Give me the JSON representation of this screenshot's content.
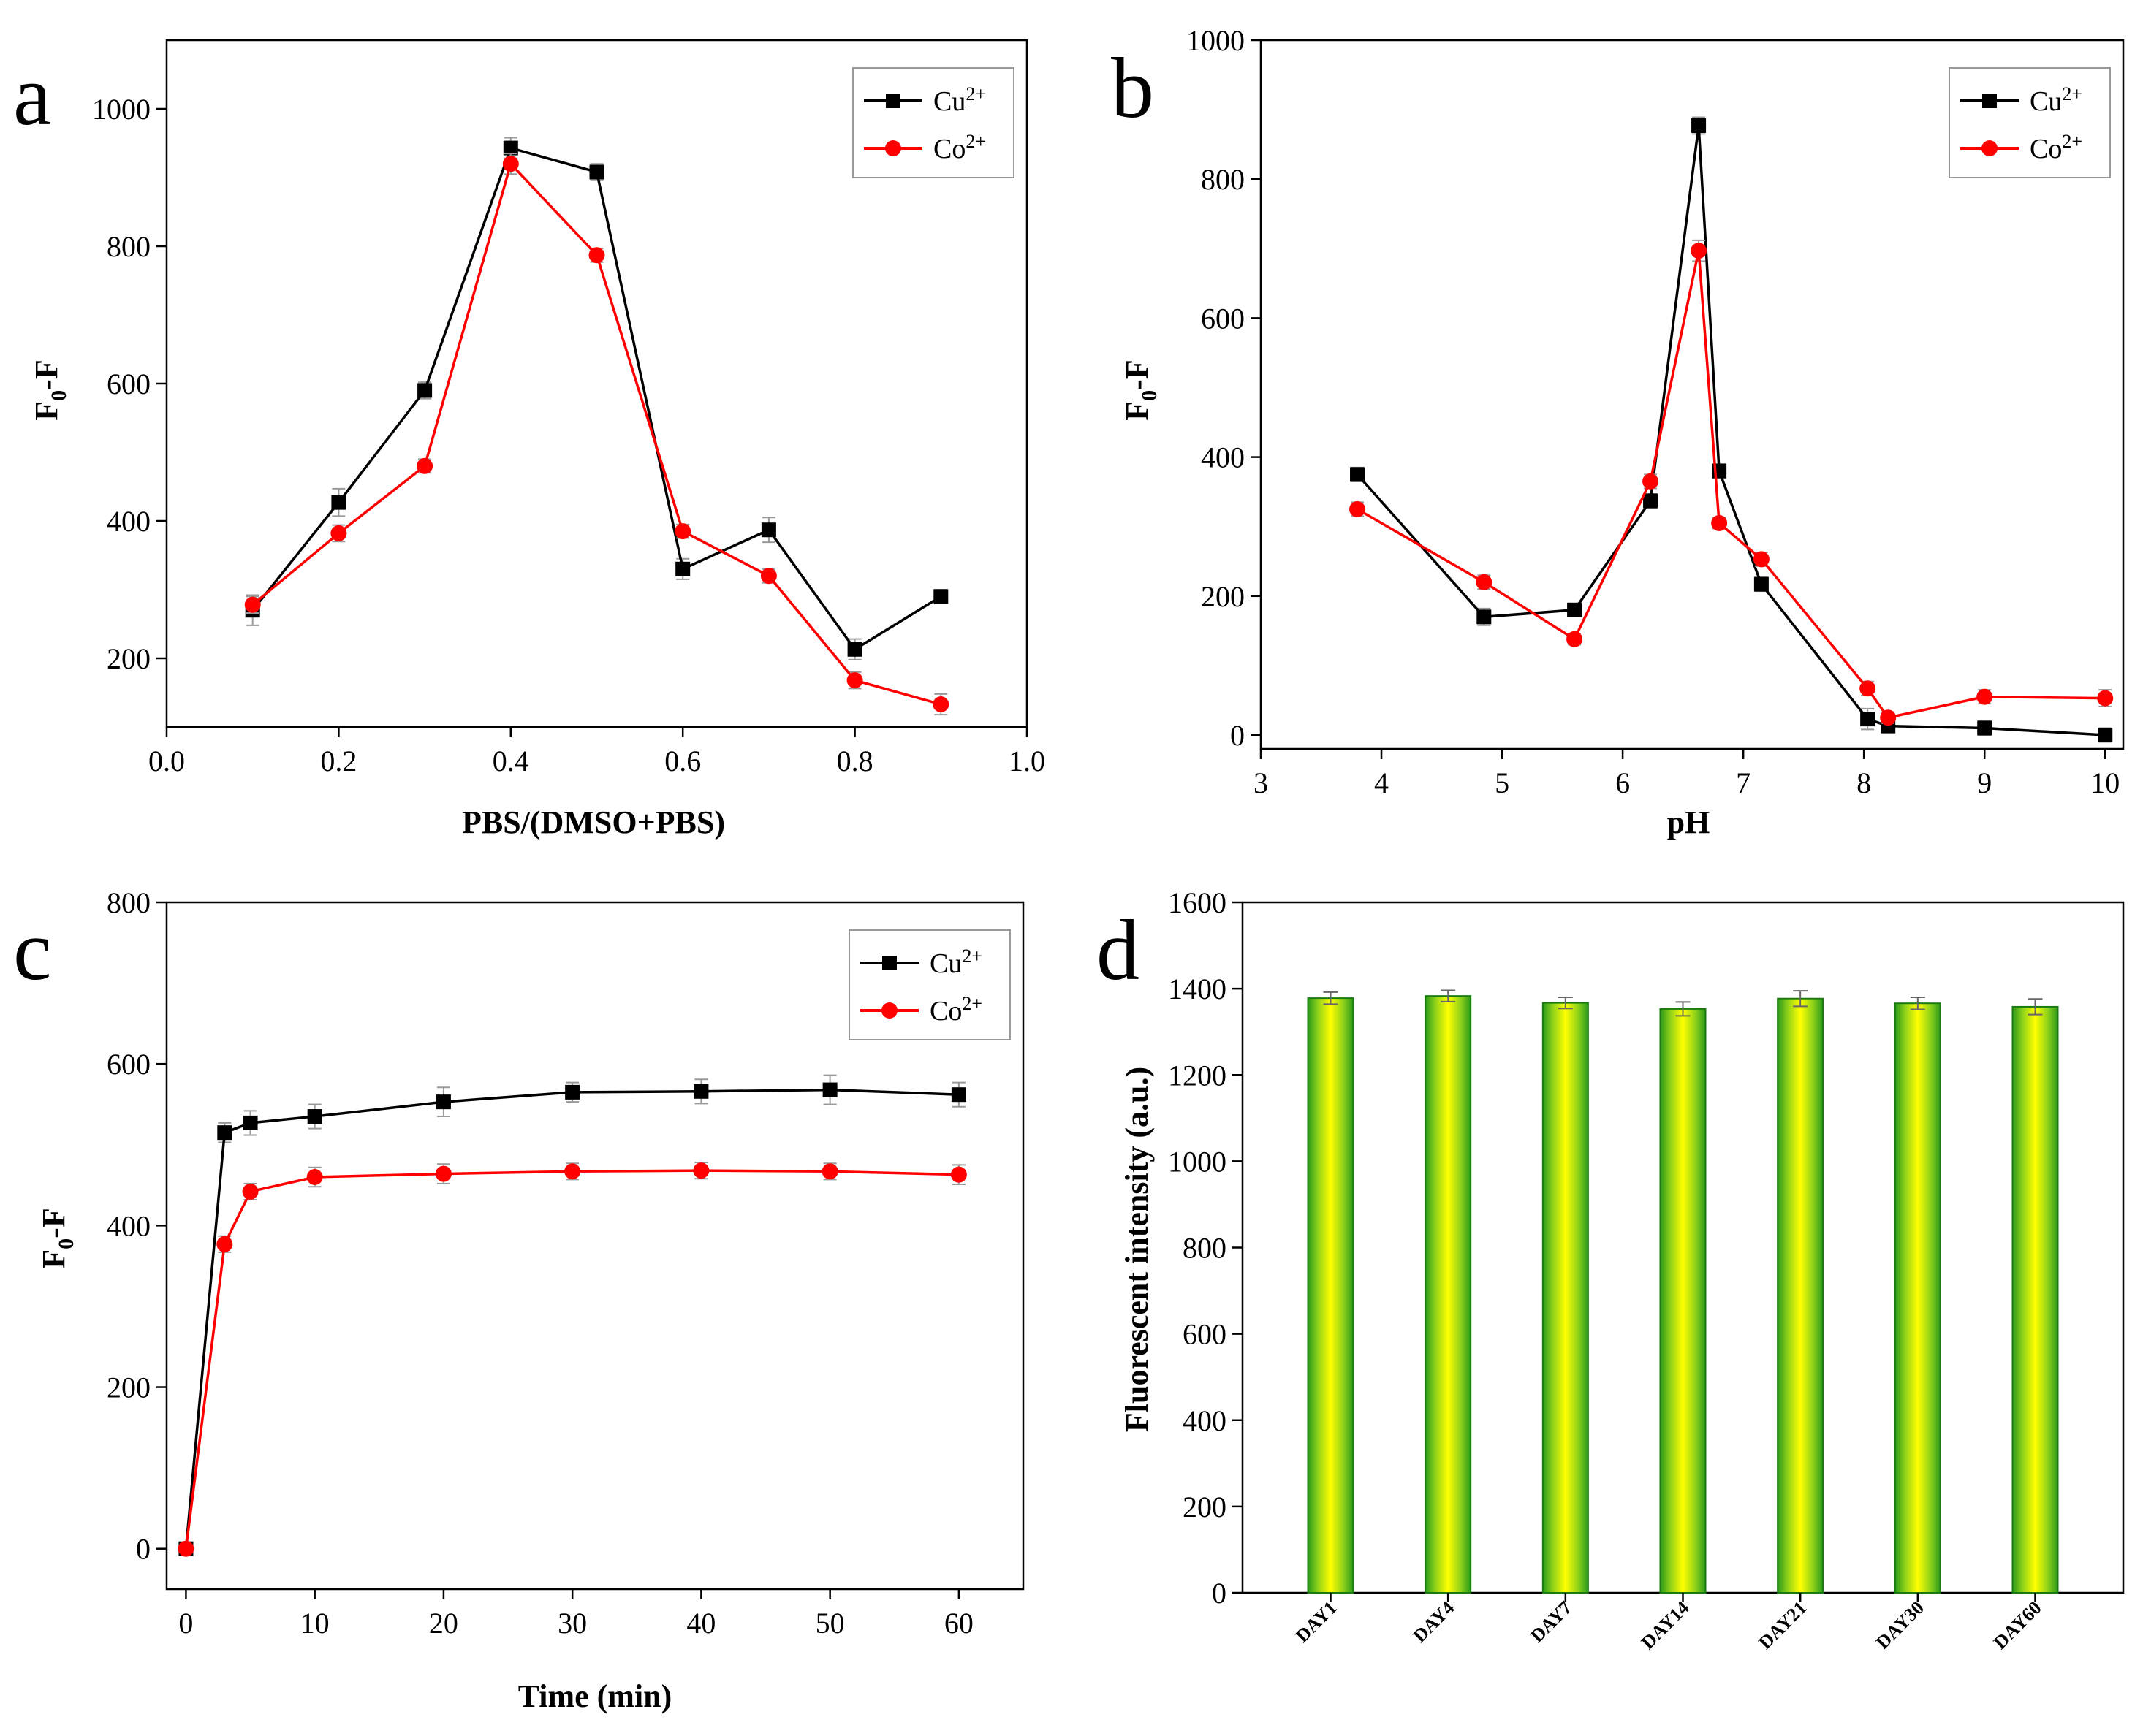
{
  "chart_data": [
    {
      "panel": "a",
      "type": "line",
      "xlabel": "PBS/(DMSO+PBS)",
      "ylabel": "F0-F",
      "ylabel_main": "F",
      "ylabel_sub": "0",
      "ylabel_tail": "-F",
      "xlim": [
        0.0,
        1.0
      ],
      "ylim": [
        100,
        1100
      ],
      "xticks": [
        0.0,
        0.2,
        0.4,
        0.6,
        0.8,
        1.0
      ],
      "xtick_labels": [
        "0.0",
        "0.2",
        "0.4",
        "0.6",
        "0.8",
        "1.0"
      ],
      "yticks": [
        200,
        400,
        600,
        800,
        1000
      ],
      "ytick_labels": [
        "200",
        "400",
        "600",
        "800",
        "1000"
      ],
      "legend": "top-right",
      "series": [
        {
          "name": "Cu2+",
          "ion": "Cu",
          "charge": "2+",
          "color": "#000000",
          "marker": "square",
          "x": [
            0.1,
            0.2,
            0.3,
            0.4,
            0.5,
            0.6,
            0.7,
            0.8,
            0.9
          ],
          "y": [
            270,
            427,
            590,
            943,
            908,
            330,
            387,
            213,
            290
          ],
          "err": [
            22,
            20,
            12,
            15,
            12,
            15,
            18,
            15,
            10
          ]
        },
        {
          "name": "Co2+",
          "ion": "Co",
          "charge": "2+",
          "color": "#ff0000",
          "marker": "circle",
          "x": [
            0.1,
            0.2,
            0.3,
            0.4,
            0.5,
            0.6,
            0.7,
            0.8,
            0.9
          ],
          "y": [
            278,
            382,
            480,
            920,
            787,
            385,
            320,
            168,
            133
          ],
          "err": [
            12,
            12,
            10,
            15,
            10,
            10,
            10,
            12,
            15
          ]
        }
      ]
    },
    {
      "panel": "b",
      "type": "line",
      "xlabel": "pH",
      "ylabel": "F0-F",
      "ylabel_main": "F",
      "ylabel_sub": "0",
      "ylabel_tail": "-F",
      "xlim": [
        3,
        10.15
      ],
      "ylim": [
        -20,
        1000
      ],
      "xticks": [
        3,
        4,
        5,
        6,
        7,
        8,
        9,
        10
      ],
      "xtick_labels": [
        "3",
        "4",
        "5",
        "6",
        "7",
        "8",
        "9",
        "10"
      ],
      "yticks": [
        0,
        200,
        400,
        600,
        800,
        1000
      ],
      "ytick_labels": [
        "0",
        "200",
        "400",
        "600",
        "800",
        "1000"
      ],
      "legend": "top-right",
      "series": [
        {
          "name": "Cu2+",
          "ion": "Cu",
          "charge": "2+",
          "color": "#000000",
          "marker": "square",
          "x": [
            3.8,
            4.85,
            5.6,
            6.23,
            6.63,
            6.8,
            7.15,
            8.03,
            8.2,
            9.0,
            10.0
          ],
          "y": [
            375,
            170,
            180,
            337,
            877,
            380,
            217,
            23,
            13,
            10,
            0
          ],
          "err": [
            10,
            12,
            8,
            10,
            12,
            10,
            10,
            15,
            8,
            10,
            10
          ]
        },
        {
          "name": "Co2+",
          "ion": "Co",
          "charge": "2+",
          "color": "#ff0000",
          "marker": "circle",
          "x": [
            3.8,
            4.85,
            5.6,
            6.23,
            6.63,
            6.8,
            7.15,
            8.03,
            8.2,
            9.0,
            10.0
          ],
          "y": [
            325,
            220,
            138,
            365,
            697,
            305,
            253,
            67,
            25,
            55,
            53
          ],
          "err": [
            10,
            10,
            8,
            10,
            15,
            8,
            10,
            10,
            8,
            10,
            12
          ]
        }
      ]
    },
    {
      "panel": "c",
      "type": "line",
      "xlabel": "Time (min)",
      "ylabel": "F0-F",
      "ylabel_main": "F",
      "ylabel_sub": "0",
      "ylabel_tail": "-F",
      "xlim": [
        -1.5,
        65
      ],
      "ylim": [
        -50,
        800
      ],
      "xticks": [
        0,
        10,
        20,
        30,
        40,
        50,
        60
      ],
      "xtick_labels": [
        "0",
        "10",
        "20",
        "30",
        "40",
        "50",
        "60"
      ],
      "yticks": [
        0,
        200,
        400,
        600,
        800
      ],
      "ytick_labels": [
        "0",
        "200",
        "400",
        "600",
        "800"
      ],
      "legend": "top-right",
      "series": [
        {
          "name": "Cu2+",
          "ion": "Cu",
          "charge": "2+",
          "color": "#000000",
          "marker": "square",
          "x": [
            0,
            3,
            5,
            10,
            20,
            30,
            40,
            50,
            60
          ],
          "y": [
            0,
            515,
            527,
            535,
            553,
            565,
            566,
            568,
            562
          ],
          "err": [
            5,
            12,
            15,
            15,
            18,
            12,
            15,
            18,
            15
          ]
        },
        {
          "name": "Co2+",
          "ion": "Co",
          "charge": "2+",
          "color": "#ff0000",
          "marker": "circle",
          "x": [
            0,
            3,
            5,
            10,
            20,
            30,
            40,
            50,
            60
          ],
          "y": [
            0,
            377,
            442,
            460,
            464,
            467,
            468,
            467,
            463
          ],
          "err": [
            5,
            10,
            10,
            12,
            12,
            10,
            10,
            10,
            12
          ]
        }
      ]
    },
    {
      "panel": "d",
      "type": "bar",
      "xlabel": "",
      "ylabel": "Fluorescent intensity (a.u.)",
      "ylim": [
        0,
        1600
      ],
      "yticks": [
        0,
        200,
        400,
        600,
        800,
        1000,
        1200,
        1400,
        1600
      ],
      "ytick_labels": [
        "0",
        "200",
        "400",
        "600",
        "800",
        "1000",
        "1200",
        "1400",
        "1600"
      ],
      "categories": [
        "DAY1",
        "DAY4",
        "DAY7",
        "DAY14",
        "DAY21",
        "DAY30",
        "DAY60"
      ],
      "values": [
        1378,
        1383,
        1367,
        1353,
        1377,
        1366,
        1358
      ],
      "err": [
        14,
        13,
        13,
        16,
        18,
        14,
        18
      ],
      "bar_colors": {
        "center": "#ffff00",
        "edge": "#2a9a1a",
        "outline": "#1a7a10"
      }
    }
  ]
}
